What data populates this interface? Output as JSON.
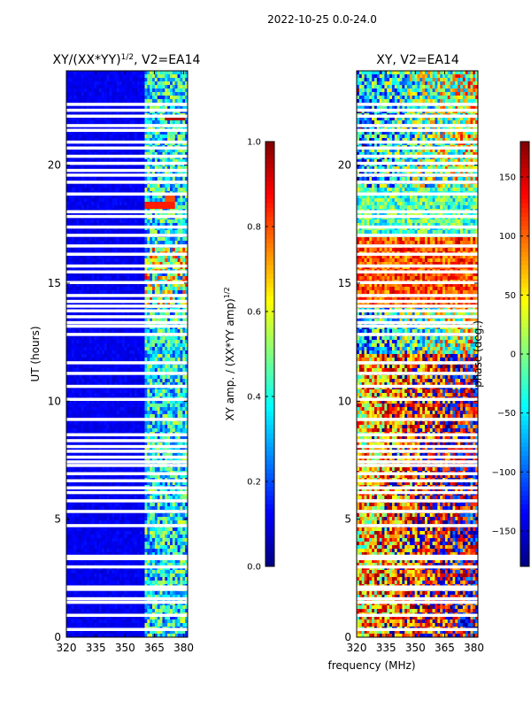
{
  "suptitle": "2022-10-25 0.0-24.0",
  "colors": {
    "jet": [
      "#000080",
      "#0000ff",
      "#0080ff",
      "#00ffff",
      "#80ff80",
      "#ffff00",
      "#ff8000",
      "#ff0000",
      "#800000"
    ],
    "gap": "#ffffff",
    "axis": "#000000"
  },
  "chart_data": [
    {
      "type": "heatmap",
      "title_main": "XY/(XX*YY)",
      "title_sup": "1/2",
      "title_suffix": ", V2=EA14",
      "ylabel": "UT (hours)",
      "xlabel": "",
      "x_range": [
        320,
        382
      ],
      "y_range": [
        0,
        24
      ],
      "x_ticks": [
        "320",
        "335",
        "350",
        "365",
        "380"
      ],
      "x_tick_values": [
        320,
        335,
        350,
        365,
        380
      ],
      "y_ticks": [
        "0",
        "5",
        "10",
        "15",
        "20"
      ],
      "y_tick_values": [
        0,
        5,
        10,
        15,
        20
      ],
      "colorbar": {
        "label_main": "XY amp. / (XX*YY amp)",
        "label_sup": "1/2",
        "range": [
          0.0,
          1.0
        ],
        "ticks": [
          "0.0",
          "0.2",
          "0.4",
          "0.6",
          "0.8",
          "1.0"
        ],
        "tick_values": [
          0.0,
          0.2,
          0.4,
          0.6,
          0.8,
          1.0
        ]
      },
      "description_values": {
        "background_amplitude": 0.08,
        "rfi_band_MHz": [
          360,
          382
        ],
        "rfi_band_amplitude": 0.45,
        "strong_rfi": [
          {
            "time_h": 18.3,
            "freq_MHz": [
              360,
              375
            ],
            "amplitude": 0.85
          },
          {
            "time_h": 22.0,
            "freq_MHz": [
              371,
              381
            ],
            "amplitude": 0.95
          },
          {
            "time_h": 18.6,
            "freq_MHz": [
              371,
              376
            ],
            "amplitude": 0.8
          }
        ]
      }
    },
    {
      "type": "heatmap",
      "title": "XY, V2=EA14",
      "ylabel": "",
      "xlabel": "frequency (MHz)",
      "x_range": [
        320,
        382
      ],
      "y_range": [
        0,
        24
      ],
      "x_ticks": [
        "320",
        "335",
        "350",
        "365",
        "380"
      ],
      "x_tick_values": [
        320,
        335,
        350,
        365,
        380
      ],
      "y_ticks": [
        "0",
        "5",
        "10",
        "15",
        "20"
      ],
      "y_tick_values": [
        0,
        5,
        10,
        15,
        20
      ],
      "colorbar": {
        "label": "phase (deg.)",
        "range": [
          -180,
          180
        ],
        "ticks": [
          "−150",
          "−100",
          "−50",
          "0",
          "50",
          "100",
          "150"
        ],
        "tick_values": [
          -150,
          -100,
          -50,
          0,
          50,
          100,
          150
        ]
      },
      "description_values": {
        "phase_wraps_in_band": true,
        "dominant_phase_early_deg": 120,
        "dominant_phase_late_deg": -20
      }
    }
  ],
  "flagged_time_gaps_hours": [
    0.3,
    0.9,
    1.45,
    1.6,
    2.0,
    2.1,
    2.95,
    3.3,
    3.4,
    4.7,
    5.3,
    5.75,
    6.1,
    6.3,
    6.6,
    6.9,
    7.25,
    7.4,
    7.6,
    7.85,
    8.05,
    8.3,
    8.55,
    9.2,
    10.05,
    10.6,
    11.15,
    11.6,
    12.8,
    13.15,
    13.3,
    13.55,
    13.8,
    14.0,
    14.2,
    14.45,
    15.0,
    15.45,
    15.7,
    16.2,
    16.55,
    17.0,
    17.35,
    17.8,
    18.0,
    18.75,
    19.25,
    19.55,
    19.75,
    20.05,
    20.35,
    20.7,
    20.95,
    21.45,
    21.65,
    22.05,
    22.3,
    22.55
  ]
}
